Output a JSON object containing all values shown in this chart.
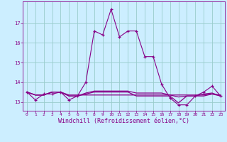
{
  "xlabel": "Windchill (Refroidissement éolien,°C)",
  "background_color": "#cceeff",
  "grid_color": "#99cccc",
  "line_color": "#880088",
  "x_hours": [
    0,
    1,
    2,
    3,
    4,
    5,
    6,
    7,
    8,
    9,
    10,
    11,
    12,
    13,
    14,
    15,
    16,
    17,
    18,
    19,
    20,
    21,
    22,
    23
  ],
  "line1": [
    13.5,
    13.1,
    13.4,
    13.4,
    13.5,
    13.1,
    13.3,
    14.0,
    16.6,
    16.4,
    17.7,
    16.3,
    16.6,
    16.6,
    15.3,
    15.3,
    13.9,
    13.2,
    12.85,
    12.85,
    13.3,
    13.5,
    13.8,
    13.3
  ],
  "line2": [
    13.5,
    13.35,
    13.35,
    13.5,
    13.5,
    13.35,
    13.35,
    13.35,
    13.35,
    13.35,
    13.35,
    13.35,
    13.35,
    13.35,
    13.35,
    13.35,
    13.35,
    13.35,
    13.35,
    13.35,
    13.35,
    13.35,
    13.4,
    13.35
  ],
  "line3": [
    13.5,
    13.35,
    13.35,
    13.5,
    13.5,
    13.3,
    13.3,
    13.4,
    13.5,
    13.5,
    13.5,
    13.5,
    13.5,
    13.3,
    13.3,
    13.3,
    13.3,
    13.3,
    12.95,
    13.3,
    13.3,
    13.3,
    13.4,
    13.3
  ],
  "line4": [
    13.5,
    13.35,
    13.35,
    13.5,
    13.5,
    13.3,
    13.3,
    13.45,
    13.55,
    13.55,
    13.55,
    13.55,
    13.55,
    13.45,
    13.45,
    13.45,
    13.45,
    13.35,
    13.25,
    13.3,
    13.3,
    13.4,
    13.45,
    13.3
  ],
  "ylim": [
    12.55,
    18.1
  ],
  "yticks": [
    13,
    14,
    15,
    16,
    17
  ],
  "xtick_fontsize": 4.5,
  "ytick_fontsize": 5.0,
  "xlabel_fontsize": 6.0
}
